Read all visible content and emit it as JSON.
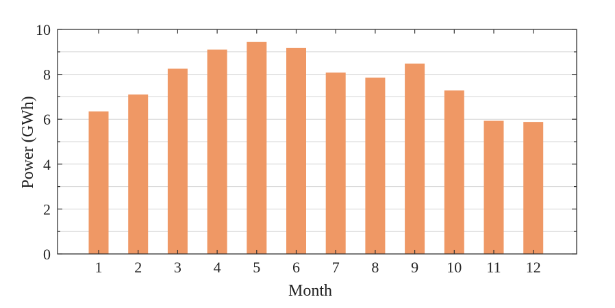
{
  "chart_data": {
    "type": "bar",
    "categories": [
      "1",
      "2",
      "3",
      "4",
      "5",
      "6",
      "7",
      "8",
      "9",
      "10",
      "11",
      "12"
    ],
    "values": [
      6.35,
      7.1,
      8.25,
      9.1,
      9.45,
      9.18,
      8.08,
      7.85,
      8.48,
      7.28,
      5.93,
      5.88
    ],
    "title": "",
    "xlabel": "Month",
    "ylabel": "Power (GWh)",
    "ylim": [
      0,
      10
    ],
    "yticks": [
      "0",
      "2",
      "4",
      "6",
      "8",
      "10"
    ],
    "y_minor_step": 1,
    "grid": true,
    "bar_color": "#ef9865"
  }
}
